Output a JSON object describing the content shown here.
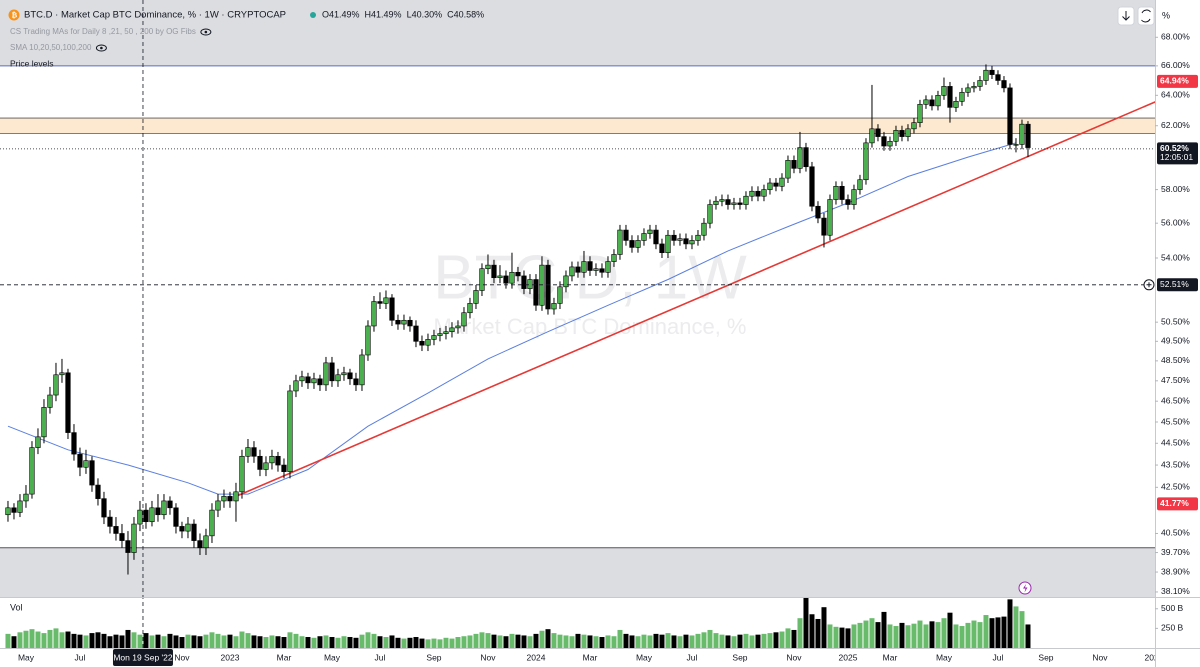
{
  "chart_data": {
    "type": "candlestick",
    "title": "BTC.D · Market Cap BTC Dominance, % · 1W · CRYPTOCAP",
    "ohlc_readout": [
      "O41.49%",
      "H41.49%",
      "L40.30%",
      "C40.58%"
    ],
    "indicators": [
      "CS Trading MAs for Daily 8 ,21, 50 , 200 by OG Fibs",
      "SMA 10,20,50,100,200",
      "Price levels"
    ],
    "watermark": [
      "BTC.D, 1W",
      "Market Cap BTC Dominance, %"
    ],
    "axis_unit": "%",
    "log_scale": true,
    "up_color": "#4caf50",
    "down_color": "#000000",
    "xlim": [
      -1.33,
      191.17
    ],
    "xticks": [
      {
        "value": 3,
        "label": "May"
      },
      {
        "value": 12,
        "label": "Jul"
      },
      {
        "value": 29,
        "label": "Nov"
      },
      {
        "value": 37,
        "label": "2023"
      },
      {
        "value": 46,
        "label": "Mar"
      },
      {
        "value": 54,
        "label": "May"
      },
      {
        "value": 62,
        "label": "Jul"
      },
      {
        "value": 71,
        "label": "Sep"
      },
      {
        "value": 80,
        "label": "Nov"
      },
      {
        "value": 88,
        "label": "2024"
      },
      {
        "value": 97,
        "label": "Mar"
      },
      {
        "value": 106,
        "label": "May"
      },
      {
        "value": 114,
        "label": "Jul"
      },
      {
        "value": 122,
        "label": "Sep"
      },
      {
        "value": 131,
        "label": "Nov"
      },
      {
        "value": 140,
        "label": "2025"
      },
      {
        "value": 147,
        "label": "Mar"
      },
      {
        "value": 156,
        "label": "May"
      },
      {
        "value": 165,
        "label": "Jul"
      },
      {
        "value": 173,
        "label": "Sep"
      },
      {
        "value": 182,
        "label": "Nov"
      },
      {
        "value": 191,
        "label": "2026"
      }
    ],
    "ylim": [
      37.9,
      70.7
    ],
    "yticks": [
      {
        "value": 68,
        "label": "68.00%"
      },
      {
        "value": 66,
        "label": "66.00%"
      },
      {
        "value": 64,
        "label": "64.00%"
      },
      {
        "value": 62,
        "label": "62.00%"
      },
      {
        "value": 58,
        "label": "58.00%"
      },
      {
        "value": 56,
        "label": "56.00%"
      },
      {
        "value": 54,
        "label": "54.00%"
      },
      {
        "value": 50.5,
        "label": "50.50%"
      },
      {
        "value": 49.5,
        "label": "49.50%"
      },
      {
        "value": 48.5,
        "label": "48.50%"
      },
      {
        "value": 47.5,
        "label": "47.50%"
      },
      {
        "value": 46.5,
        "label": "46.50%"
      },
      {
        "value": 45.5,
        "label": "45.50%"
      },
      {
        "value": 44.5,
        "label": "44.50%"
      },
      {
        "value": 43.5,
        "label": "43.50%"
      },
      {
        "value": 42.5,
        "label": "42.50%"
      },
      {
        "value": 40.5,
        "label": "40.50%"
      },
      {
        "value": 39.7,
        "label": "39.70%"
      },
      {
        "value": 38.9,
        "label": "38.90%"
      },
      {
        "value": 38.1,
        "label": "38.10%"
      }
    ],
    "levels": [
      {
        "value": 66.0,
        "color": "#5c6bc0"
      },
      {
        "value": 39.9,
        "color": "#555555"
      }
    ],
    "shade_color": "#dcdde1",
    "zone": {
      "range": [
        61.5,
        62.5
      ],
      "color": "#fde9cf",
      "border": "#555555"
    },
    "trendline": {
      "x": [
        38,
        192
      ],
      "values": [
        42.1,
        63.7
      ],
      "color": "#e53935"
    },
    "sma": {
      "x": [
        0,
        10,
        20,
        30,
        35,
        40,
        50,
        60,
        70,
        80,
        90,
        100,
        110,
        120,
        130,
        140,
        150,
        160,
        168
      ],
      "values": [
        45.3,
        44.2,
        43.5,
        42.7,
        42.2,
        42.2,
        43.3,
        45.3,
        46.9,
        48.6,
        50.0,
        51.4,
        52.8,
        54.4,
        55.8,
        57.2,
        58.8,
        60.0,
        60.9
      ],
      "color": "#5b7fe0"
    },
    "price_tags": [
      {
        "value": 64.94,
        "label": "64.94%",
        "color": "#f23645"
      },
      {
        "value": 41.77,
        "label": "41.77%",
        "color": "#f23645"
      }
    ],
    "last_price": {
      "value": 60.52,
      "label": "60.52%",
      "countdown": "12:05:01",
      "color": "#131722"
    },
    "crosshair": {
      "x": 22.5,
      "date_label": "Mon 19 Sep '22",
      "value": 52.51,
      "value_label": "52.51%"
    },
    "candles": [
      [
        41.3,
        41.9,
        41.0,
        41.6
      ],
      [
        41.6,
        41.8,
        41.1,
        41.4
      ],
      [
        41.4,
        42.2,
        41.2,
        41.9
      ],
      [
        41.9,
        42.6,
        41.6,
        42.2
      ],
      [
        42.2,
        44.6,
        42.0,
        44.3
      ],
      [
        44.3,
        45.2,
        44.0,
        44.8
      ],
      [
        44.8,
        46.6,
        44.5,
        46.2
      ],
      [
        46.2,
        47.2,
        45.9,
        46.8
      ],
      [
        46.8,
        48.4,
        46.5,
        47.8
      ],
      [
        47.8,
        48.6,
        47.4,
        47.9
      ],
      [
        47.9,
        48.1,
        44.7,
        45.0
      ],
      [
        45.0,
        45.4,
        43.7,
        44.0
      ],
      [
        44.0,
        44.3,
        43.0,
        43.4
      ],
      [
        43.4,
        44.2,
        43.1,
        43.7
      ],
      [
        43.7,
        43.9,
        42.3,
        42.6
      ],
      [
        42.6,
        42.9,
        41.7,
        42.0
      ],
      [
        42.0,
        42.3,
        40.9,
        41.2
      ],
      [
        41.2,
        41.5,
        40.5,
        40.8
      ],
      [
        40.8,
        41.2,
        40.2,
        40.5
      ],
      [
        40.5,
        40.9,
        39.9,
        40.2
      ],
      [
        40.2,
        40.6,
        38.8,
        39.7
      ],
      [
        39.7,
        41.2,
        39.4,
        40.9
      ],
      [
        40.9,
        41.9,
        40.6,
        41.5
      ],
      [
        41.5,
        41.8,
        40.7,
        41.0
      ],
      [
        41.0,
        41.9,
        40.8,
        41.6
      ],
      [
        41.6,
        42.2,
        41.0,
        41.3
      ],
      [
        41.3,
        42.2,
        41.1,
        41.9
      ],
      [
        41.9,
        42.1,
        41.3,
        41.6
      ],
      [
        41.6,
        41.8,
        40.5,
        40.8
      ],
      [
        40.8,
        41.0,
        40.3,
        40.6
      ],
      [
        40.6,
        41.2,
        40.3,
        40.9
      ],
      [
        40.9,
        41.1,
        39.9,
        40.2
      ],
      [
        40.2,
        40.5,
        39.6,
        39.9
      ],
      [
        39.9,
        40.7,
        39.6,
        40.4
      ],
      [
        40.4,
        41.8,
        40.1,
        41.5
      ],
      [
        41.5,
        42.2,
        41.2,
        41.9
      ],
      [
        41.9,
        42.4,
        41.6,
        42.1
      ],
      [
        42.1,
        42.3,
        41.6,
        41.9
      ],
      [
        41.9,
        42.7,
        41.0,
        42.3
      ],
      [
        42.3,
        44.2,
        42.0,
        43.9
      ],
      [
        43.9,
        44.7,
        43.6,
        44.3
      ],
      [
        44.3,
        44.6,
        43.6,
        43.9
      ],
      [
        43.9,
        44.2,
        43.0,
        43.3
      ],
      [
        43.3,
        43.9,
        43.0,
        43.6
      ],
      [
        43.6,
        44.2,
        43.3,
        43.9
      ],
      [
        43.9,
        44.1,
        43.2,
        43.5
      ],
      [
        43.5,
        43.8,
        42.9,
        43.2
      ],
      [
        43.2,
        47.3,
        42.9,
        47.0
      ],
      [
        47.0,
        47.8,
        46.7,
        47.5
      ],
      [
        47.5,
        48.0,
        47.2,
        47.7
      ],
      [
        47.7,
        47.9,
        47.1,
        47.4
      ],
      [
        47.4,
        47.9,
        47.1,
        47.6
      ],
      [
        47.6,
        47.8,
        47.0,
        47.3
      ],
      [
        47.3,
        48.7,
        47.0,
        48.4
      ],
      [
        48.4,
        48.7,
        47.2,
        47.5
      ],
      [
        47.5,
        48.1,
        47.2,
        47.8
      ],
      [
        47.8,
        48.2,
        47.5,
        47.9
      ],
      [
        47.9,
        48.1,
        47.3,
        47.6
      ],
      [
        47.6,
        47.9,
        47.0,
        47.3
      ],
      [
        47.3,
        49.1,
        47.0,
        48.8
      ],
      [
        48.8,
        50.6,
        48.5,
        50.3
      ],
      [
        50.3,
        51.9,
        50.0,
        51.6
      ],
      [
        51.6,
        52.1,
        51.2,
        51.5
      ],
      [
        51.5,
        52.2,
        51.2,
        51.8
      ],
      [
        51.8,
        52.0,
        50.3,
        50.6
      ],
      [
        50.6,
        50.9,
        50.1,
        50.4
      ],
      [
        50.4,
        50.9,
        50.1,
        50.6
      ],
      [
        50.6,
        50.8,
        50.0,
        50.3
      ],
      [
        50.3,
        50.6,
        49.2,
        49.5
      ],
      [
        49.5,
        49.8,
        49.0,
        49.3
      ],
      [
        49.3,
        49.9,
        49.0,
        49.6
      ],
      [
        49.6,
        50.1,
        49.3,
        49.8
      ],
      [
        49.8,
        50.2,
        49.5,
        49.9
      ],
      [
        49.9,
        50.3,
        49.6,
        50.0
      ],
      [
        50.0,
        50.5,
        49.7,
        50.2
      ],
      [
        50.2,
        50.6,
        49.9,
        50.3
      ],
      [
        50.3,
        51.3,
        50.0,
        51.0
      ],
      [
        51.0,
        51.8,
        50.7,
        51.5
      ],
      [
        51.5,
        52.5,
        51.2,
        52.2
      ],
      [
        52.2,
        53.7,
        51.9,
        53.4
      ],
      [
        53.4,
        54.2,
        53.1,
        53.6
      ],
      [
        53.6,
        53.9,
        52.6,
        52.9
      ],
      [
        52.9,
        53.6,
        52.6,
        53.0
      ],
      [
        53.0,
        53.3,
        52.3,
        52.6
      ],
      [
        52.6,
        54.3,
        52.3,
        53.2
      ],
      [
        53.2,
        53.5,
        52.7,
        53.0
      ],
      [
        53.0,
        53.3,
        52.0,
        52.3
      ],
      [
        52.3,
        53.1,
        52.0,
        52.8
      ],
      [
        52.8,
        53.1,
        51.1,
        51.4
      ],
      [
        51.4,
        54.1,
        51.1,
        53.6
      ],
      [
        53.6,
        53.9,
        50.9,
        51.2
      ],
      [
        51.2,
        51.8,
        50.9,
        51.5
      ],
      [
        51.5,
        52.7,
        51.2,
        52.4
      ],
      [
        52.4,
        53.3,
        52.1,
        53.0
      ],
      [
        53.0,
        53.8,
        52.7,
        53.5
      ],
      [
        53.5,
        53.8,
        52.9,
        53.2
      ],
      [
        53.2,
        54.4,
        52.9,
        53.8
      ],
      [
        53.8,
        54.1,
        53.0,
        53.3
      ],
      [
        53.3,
        53.7,
        53.0,
        53.4
      ],
      [
        53.4,
        53.7,
        52.9,
        53.2
      ],
      [
        53.2,
        54.1,
        52.9,
        53.8
      ],
      [
        53.8,
        54.5,
        53.5,
        54.2
      ],
      [
        54.2,
        55.9,
        53.9,
        55.6
      ],
      [
        55.6,
        55.9,
        54.7,
        55.0
      ],
      [
        55.0,
        55.3,
        54.3,
        54.6
      ],
      [
        54.6,
        55.3,
        54.3,
        55.0
      ],
      [
        55.0,
        55.7,
        54.7,
        55.4
      ],
      [
        55.4,
        55.9,
        55.1,
        55.6
      ],
      [
        55.6,
        55.9,
        54.5,
        54.8
      ],
      [
        54.8,
        55.1,
        54.0,
        54.3
      ],
      [
        54.3,
        55.6,
        54.0,
        55.3
      ],
      [
        55.3,
        55.6,
        54.7,
        55.0
      ],
      [
        55.0,
        55.4,
        54.7,
        55.1
      ],
      [
        55.1,
        55.4,
        54.5,
        54.8
      ],
      [
        54.8,
        55.3,
        54.5,
        55.0
      ],
      [
        55.0,
        55.6,
        54.7,
        55.3
      ],
      [
        55.3,
        56.3,
        55.0,
        56.0
      ],
      [
        56.0,
        57.4,
        55.7,
        57.1
      ],
      [
        57.1,
        57.6,
        56.8,
        57.3
      ],
      [
        57.3,
        57.7,
        57.0,
        57.4
      ],
      [
        57.4,
        57.7,
        56.8,
        57.1
      ],
      [
        57.1,
        57.5,
        56.8,
        57.2
      ],
      [
        57.2,
        57.5,
        56.8,
        57.1
      ],
      [
        57.1,
        57.9,
        56.8,
        57.6
      ],
      [
        57.6,
        58.2,
        57.3,
        57.9
      ],
      [
        57.9,
        58.2,
        57.3,
        57.6
      ],
      [
        57.6,
        58.3,
        57.3,
        58.0
      ],
      [
        58.0,
        58.7,
        57.7,
        58.4
      ],
      [
        58.4,
        58.7,
        57.9,
        58.2
      ],
      [
        58.2,
        59.0,
        57.9,
        58.7
      ],
      [
        58.7,
        60.1,
        58.4,
        59.8
      ],
      [
        59.8,
        60.1,
        59.0,
        59.3
      ],
      [
        59.3,
        61.6,
        59.0,
        60.6
      ],
      [
        60.6,
        60.9,
        59.1,
        59.4
      ],
      [
        59.4,
        59.7,
        56.7,
        57.0
      ],
      [
        57.0,
        57.3,
        56.0,
        56.3
      ],
      [
        56.3,
        56.6,
        54.6,
        55.3
      ],
      [
        55.3,
        57.7,
        55.0,
        57.4
      ],
      [
        57.4,
        58.5,
        57.1,
        58.2
      ],
      [
        58.2,
        58.5,
        57.1,
        57.4
      ],
      [
        57.4,
        57.7,
        56.8,
        57.1
      ],
      [
        57.1,
        58.3,
        56.8,
        58.0
      ],
      [
        58.0,
        58.9,
        57.7,
        58.6
      ],
      [
        58.6,
        61.2,
        58.3,
        60.9
      ],
      [
        60.9,
        64.7,
        60.6,
        61.8
      ],
      [
        61.8,
        62.1,
        61.0,
        61.3
      ],
      [
        61.3,
        61.6,
        60.4,
        60.7
      ],
      [
        60.7,
        61.3,
        60.4,
        61.0
      ],
      [
        61.0,
        62.0,
        60.7,
        61.7
      ],
      [
        61.7,
        62.0,
        61.0,
        61.3
      ],
      [
        61.3,
        62.1,
        61.0,
        61.8
      ],
      [
        61.8,
        62.5,
        61.5,
        62.2
      ],
      [
        62.2,
        63.7,
        61.9,
        63.4
      ],
      [
        63.4,
        64.0,
        63.1,
        63.7
      ],
      [
        63.7,
        64.0,
        63.0,
        63.3
      ],
      [
        63.3,
        64.3,
        63.0,
        64.0
      ],
      [
        64.0,
        65.2,
        63.7,
        64.6
      ],
      [
        64.6,
        64.9,
        62.2,
        63.2
      ],
      [
        63.2,
        63.9,
        62.9,
        63.6
      ],
      [
        63.6,
        64.5,
        63.3,
        64.2
      ],
      [
        64.2,
        64.8,
        63.9,
        64.5
      ],
      [
        64.5,
        64.9,
        64.2,
        64.6
      ],
      [
        64.6,
        65.3,
        64.3,
        65.0
      ],
      [
        65.0,
        66.1,
        64.7,
        65.7
      ],
      [
        65.7,
        66.0,
        65.1,
        65.4
      ],
      [
        65.4,
        65.7,
        64.7,
        65.0
      ],
      [
        65.0,
        65.3,
        64.2,
        64.5
      ],
      [
        64.5,
        64.8,
        60.5,
        60.8
      ],
      [
        60.8,
        61.2,
        60.3,
        60.8
      ],
      [
        60.8,
        62.4,
        60.5,
        62.1
      ],
      [
        62.1,
        62.3,
        60.0,
        60.6
      ]
    ],
    "volume": {
      "label": "Vol",
      "ylim": [
        0,
        650
      ],
      "yticks": [
        {
          "value": 500,
          "label": "500 B"
        },
        {
          "value": 250,
          "label": "250 B"
        }
      ],
      "values": [
        180,
        150,
        200,
        220,
        240,
        210,
        190,
        230,
        250,
        200,
        210,
        180,
        170,
        160,
        190,
        200,
        180,
        150,
        170,
        160,
        230,
        200,
        170,
        190,
        160,
        170,
        150,
        180,
        160,
        140,
        170,
        160,
        150,
        170,
        200,
        180,
        160,
        170,
        150,
        210,
        190,
        160,
        150,
        140,
        160,
        150,
        140,
        200,
        180,
        150,
        140,
        130,
        150,
        160,
        140,
        130,
        150,
        140,
        130,
        170,
        200,
        180,
        150,
        140,
        160,
        130,
        120,
        130,
        140,
        120,
        110,
        120,
        110,
        130,
        120,
        140,
        150,
        160,
        180,
        200,
        190,
        170,
        160,
        150,
        180,
        170,
        160,
        150,
        180,
        220,
        240,
        190,
        170,
        160,
        150,
        180,
        170,
        160,
        150,
        140,
        160,
        150,
        230,
        180,
        160,
        150,
        170,
        160,
        180,
        170,
        190,
        160,
        150,
        170,
        160,
        180,
        200,
        230,
        190,
        170,
        160,
        150,
        170,
        180,
        160,
        170,
        180,
        190,
        200,
        210,
        250,
        230,
        380,
        640,
        430,
        370,
        520,
        300,
        270,
        260,
        250,
        300,
        320,
        350,
        380,
        330,
        460,
        300,
        280,
        320,
        290,
        310,
        350,
        300,
        340,
        330,
        380,
        450,
        300,
        280,
        320,
        350,
        330,
        420,
        380,
        390,
        400,
        620,
        530,
        470,
        300
      ]
    }
  }
}
